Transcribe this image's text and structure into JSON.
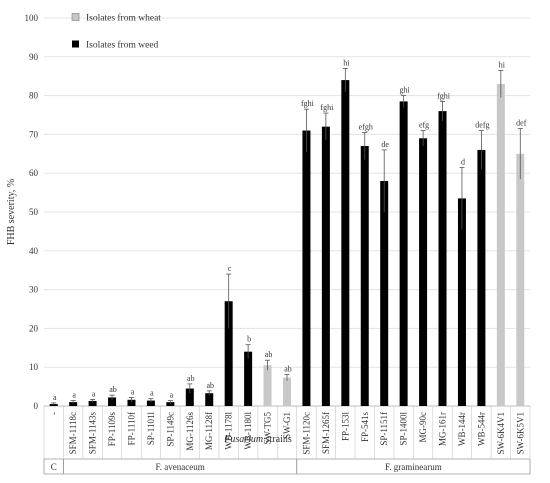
{
  "chart_data": {
    "type": "bar",
    "ylabel": "FHB severity, %",
    "xlabel_italic": "Fusarium",
    "xlabel_rest": " strains",
    "ylim": [
      0,
      100
    ],
    "ytick_step": 10,
    "grid": true,
    "legend_position": "top-left",
    "legend": [
      {
        "label": "Isolates from wheat",
        "color": "#c8c8c8"
      },
      {
        "label": "Isolates from weed",
        "color": "#000000"
      }
    ],
    "categories": [
      "-",
      "SFM-1118c",
      "SFM-1143s",
      "FP-1109s",
      "FP-1110f",
      "SP-1101l",
      "SP-1149c",
      "MG-1126s",
      "MG-1128f",
      "WB-1178l",
      "WB-1180l",
      "SW-TG5",
      "SW-G1",
      "SFM-1120c",
      "SFM-1265f",
      "FP-153l",
      "FP-541s",
      "SP-1151f",
      "SP-1400l",
      "MG-90c",
      "MG-161r",
      "WB-144r",
      "WB-544r",
      "SW-6K4V1",
      "SW-6K5V1"
    ],
    "values": [
      0.5,
      1.0,
      1.3,
      2.2,
      1.6,
      1.4,
      1.0,
      4.5,
      3.3,
      27.0,
      14.0,
      10.5,
      7.3,
      71.0,
      72.0,
      84.0,
      67.0,
      58.0,
      78.5,
      69.0,
      76.0,
      53.5,
      66.0,
      83.0,
      65.0
    ],
    "errors": [
      0.3,
      0.4,
      0.4,
      0.6,
      0.6,
      0.5,
      0.4,
      1.2,
      0.6,
      7.0,
      1.8,
      1.3,
      0.8,
      5.5,
      3.5,
      3.0,
      3.5,
      8.0,
      1.5,
      2.0,
      2.5,
      8.0,
      5.0,
      3.5,
      6.5
    ],
    "source": [
      "weed",
      "weed",
      "weed",
      "weed",
      "weed",
      "weed",
      "weed",
      "weed",
      "weed",
      "weed",
      "weed",
      "wheat",
      "wheat",
      "weed",
      "weed",
      "weed",
      "weed",
      "weed",
      "weed",
      "weed",
      "weed",
      "weed",
      "weed",
      "wheat",
      "wheat"
    ],
    "letters": [
      "a",
      "a",
      "a",
      "ab",
      "a",
      "a",
      "a",
      "ab",
      "ab",
      "c",
      "b",
      "ab",
      "ab",
      "fghi",
      "fghi",
      "hi",
      "efgh",
      "de",
      "ghi",
      "efg",
      "fghi",
      "d",
      "defg",
      "hi",
      "def"
    ],
    "groups": [
      {
        "label": "C",
        "start": 0,
        "end": 0
      },
      {
        "label": "F. avenaceum",
        "start": 1,
        "end": 12
      },
      {
        "label": "F. graminearum",
        "start": 13,
        "end": 24
      }
    ]
  }
}
